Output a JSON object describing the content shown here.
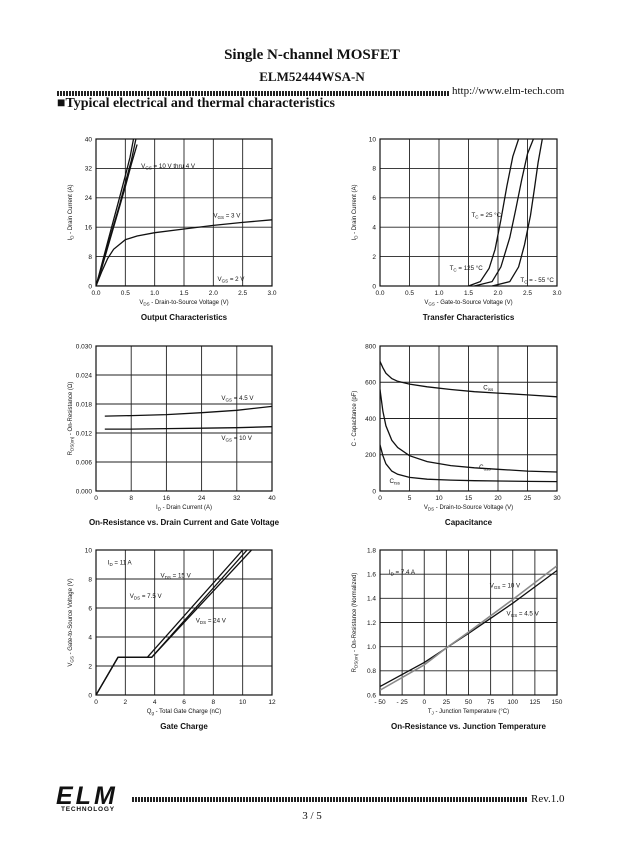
{
  "header": {
    "title": "Single N-channel MOSFET",
    "part_number": "ELM52444WSA-N",
    "url": "http://www.elm-tech.com"
  },
  "section_heading": "■Typical electrical and thermal characteristics",
  "footer": {
    "logo_text": "ELM",
    "logo_subtext": "TECHNOLOGY",
    "revision": "Rev.1.0",
    "page": "3 / 5"
  },
  "chart_data": [
    {
      "type": "line",
      "title": "Output Characteristics",
      "xlabel_parts": [
        "V",
        "DS",
        " - Drain-to-Source Voltage (V)"
      ],
      "ylabel_parts": [
        "I",
        "D",
        " - Drain Current (A)"
      ],
      "xlim": [
        0,
        3
      ],
      "ylim": [
        0,
        40
      ],
      "xticks": [
        "0.0",
        "0.5",
        "1.0",
        "1.5",
        "2.0",
        "2.5",
        "3.0"
      ],
      "yticks": [
        "0",
        "8",
        "16",
        "24",
        "32",
        "40"
      ],
      "series": [
        {
          "name": "VGS = 10 V thru 4 V",
          "x": [
            0,
            0.1,
            0.2,
            0.3,
            0.4,
            0.5,
            0.58,
            0.64
          ],
          "y": [
            0,
            6,
            12,
            18,
            24,
            30,
            35,
            40
          ]
        },
        {
          "name": "VGS = 10 V thru 4 V (2)",
          "x": [
            0,
            0.1,
            0.2,
            0.3,
            0.4,
            0.5,
            0.6,
            0.68
          ],
          "y": [
            0,
            5.5,
            11,
            16.5,
            22,
            28,
            34,
            40
          ]
        },
        {
          "name": "VGS = 10 V thru 4 V (3)",
          "x": [
            0,
            0.1,
            0.2,
            0.3,
            0.4,
            0.5,
            0.6,
            0.7
          ],
          "y": [
            0,
            5,
            10.5,
            16,
            21.5,
            27,
            33,
            38.5
          ]
        },
        {
          "name": "VGS = 3 V",
          "x": [
            0,
            0.1,
            0.2,
            0.3,
            0.5,
            0.7,
            1.0,
            1.5,
            2.0,
            2.5,
            3.0
          ],
          "y": [
            0,
            4,
            7.5,
            10,
            12.6,
            13.6,
            14.5,
            15.5,
            16.5,
            17.3,
            18
          ]
        },
        {
          "name": "VGS = 2 V",
          "x": [
            0,
            1,
            2,
            3
          ],
          "y": [
            0,
            0,
            0,
            0
          ]
        }
      ],
      "annotations": [
        {
          "parts": [
            "V",
            "GS",
            " = 10 V thru 4 V"
          ],
          "x": 0.77,
          "y": 32.1
        },
        {
          "parts": [
            "V",
            "GS",
            " = 3 V"
          ],
          "x": 2.0,
          "y": 18.7
        },
        {
          "parts": [
            "V",
            "GS",
            " = 2 V"
          ],
          "x": 2.07,
          "y": 1.3
        }
      ]
    },
    {
      "type": "line",
      "title": "Transfer Characteristics",
      "xlabel_parts": [
        "V",
        "GS",
        " - Gate-to-Source Voltage (V)"
      ],
      "ylabel_parts": [
        "I",
        "D",
        " - Drain Current (A)"
      ],
      "xlim": [
        0,
        3
      ],
      "ylim": [
        0,
        10
      ],
      "xticks": [
        "0.0",
        "0.5",
        "1.0",
        "1.5",
        "2.0",
        "2.5",
        "3.0"
      ],
      "yticks": [
        "0",
        "2",
        "4",
        "6",
        "8",
        "10"
      ],
      "series": [
        {
          "name": "TC = 125 °C",
          "x": [
            1.5,
            1.7,
            1.85,
            1.95,
            2.05,
            2.15,
            2.25,
            2.35
          ],
          "y": [
            0,
            0.3,
            1.2,
            2.5,
            4.5,
            6.8,
            8.8,
            10
          ]
        },
        {
          "name": "TC = 25 °C",
          "x": [
            1.6,
            1.9,
            2.05,
            2.2,
            2.3,
            2.4,
            2.5,
            2.6
          ],
          "y": [
            0,
            0.3,
            1.3,
            3.3,
            5.2,
            7.2,
            9.0,
            10
          ]
        },
        {
          "name": "TC = - 55 °C",
          "x": [
            1.9,
            2.2,
            2.35,
            2.45,
            2.55,
            2.62,
            2.68,
            2.75
          ],
          "y": [
            0,
            0.3,
            1.3,
            2.8,
            4.8,
            6.7,
            8.4,
            10
          ]
        }
      ],
      "annotations": [
        {
          "parts": [
            "T",
            "C",
            " = 25 °C"
          ],
          "x": 1.55,
          "y": 4.7
        },
        {
          "parts": [
            "T",
            "C",
            " = 125 °C"
          ],
          "x": 1.18,
          "y": 1.1
        },
        {
          "parts": [
            "T",
            "C",
            " = - 55 °C"
          ],
          "x": 2.38,
          "y": 0.28
        }
      ]
    },
    {
      "type": "line",
      "title": "On-Resistance vs. Drain Current and Gate Voltage",
      "xlabel_parts": [
        "I",
        "D",
        " - Drain Current (A)"
      ],
      "ylabel_parts": [
        "R",
        "DS(on)",
        " - On-Resistance (Ω)"
      ],
      "xlim": [
        0,
        40
      ],
      "ylim": [
        0,
        0.03
      ],
      "xticks": [
        "0",
        "8",
        "16",
        "24",
        "32",
        "40"
      ],
      "yticks": [
        "0.000",
        "0.006",
        "0.012",
        "0.018",
        "0.024",
        "0.030"
      ],
      "series": [
        {
          "name": "VGS = 4.5 V",
          "x": [
            2,
            8,
            16,
            24,
            32,
            40
          ],
          "y": [
            0.0155,
            0.0156,
            0.0158,
            0.0162,
            0.0167,
            0.0175
          ]
        },
        {
          "name": "VGS = 10 V",
          "x": [
            2,
            8,
            16,
            24,
            32,
            40
          ],
          "y": [
            0.0128,
            0.0128,
            0.0129,
            0.013,
            0.0131,
            0.0133
          ]
        }
      ],
      "annotations": [
        {
          "parts": [
            "V",
            "GS",
            " = 4.5 V"
          ],
          "x": 28.5,
          "y": 0.0188
        },
        {
          "parts": [
            "V",
            "GS",
            " = 10 V"
          ],
          "x": 28.5,
          "y": 0.0106
        }
      ]
    },
    {
      "type": "line",
      "title": "Capacitance",
      "xlabel_parts": [
        "V",
        "DS",
        " - Drain-to-Source Voltage (V)"
      ],
      "ylabel_parts": [
        "C - Capacitance (pF)",
        "",
        ""
      ],
      "xlim": [
        0,
        30
      ],
      "ylim": [
        0,
        800
      ],
      "xticks": [
        "0",
        "5",
        "10",
        "15",
        "20",
        "25",
        "30"
      ],
      "yticks": [
        "0",
        "200",
        "400",
        "600",
        "800"
      ],
      "series": [
        {
          "name": "Ciss",
          "x": [
            0,
            0.5,
            1,
            2,
            3,
            5,
            8,
            12,
            16,
            20,
            25,
            30
          ],
          "y": [
            715,
            680,
            650,
            620,
            605,
            590,
            575,
            560,
            548,
            540,
            530,
            520
          ]
        },
        {
          "name": "Coss",
          "x": [
            0,
            0.5,
            1,
            2,
            3,
            5,
            8,
            12,
            16,
            20,
            25,
            30
          ],
          "y": [
            560,
            440,
            360,
            280,
            240,
            195,
            162,
            140,
            128,
            120,
            110,
            105
          ]
        },
        {
          "name": "Crss",
          "x": [
            0,
            0.5,
            1,
            2,
            3,
            5,
            8,
            12,
            16,
            20,
            25,
            30
          ],
          "y": [
            255,
            195,
            150,
            110,
            92,
            75,
            65,
            60,
            57,
            55,
            53,
            52
          ]
        }
      ],
      "annotations": [
        {
          "parts": [
            "C",
            "iss",
            ""
          ],
          "x": 17.5,
          "y": 560
        },
        {
          "parts": [
            "C",
            "oss",
            ""
          ],
          "x": 16.8,
          "y": 122
        },
        {
          "parts": [
            "C",
            "rss",
            ""
          ],
          "x": 1.6,
          "y": 45
        }
      ]
    },
    {
      "type": "line",
      "title": "Gate Charge",
      "xlabel_parts": [
        "Q",
        "g",
        " - Total Gate Charge (nC)"
      ],
      "ylabel_parts": [
        "V",
        "GS",
        " - Gate-to-Source Voltage (V)"
      ],
      "xlim": [
        0,
        12
      ],
      "ylim": [
        0,
        10
      ],
      "xticks": [
        "0",
        "2",
        "4",
        "6",
        "8",
        "10",
        "12"
      ],
      "yticks": [
        "0",
        "2",
        "4",
        "6",
        "8",
        "10"
      ],
      "series": [
        {
          "name": "VDS = 7.5 V",
          "x": [
            0,
            1.5,
            3.5,
            10
          ],
          "y": [
            0,
            2.6,
            2.6,
            10
          ]
        },
        {
          "name": "VDS = 15 V",
          "x": [
            0,
            1.5,
            3.8,
            10.3
          ],
          "y": [
            0,
            2.6,
            2.6,
            10
          ]
        },
        {
          "name": "VDS = 24 V",
          "x": [
            0,
            1.5,
            3.8,
            10.6
          ],
          "y": [
            0,
            2.6,
            2.6,
            10
          ]
        }
      ],
      "annotations": [
        {
          "parts": [
            "I",
            "D",
            " = 11 A"
          ],
          "x": 0.8,
          "y": 9.0
        },
        {
          "parts": [
            "V",
            "DS",
            " = 15 V"
          ],
          "x": 4.4,
          "y": 8.1
        },
        {
          "parts": [
            "V",
            "DS",
            " = 7.5 V"
          ],
          "x": 2.3,
          "y": 6.7
        },
        {
          "parts": [
            "V",
            "DS",
            " = 24 V"
          ],
          "x": 6.8,
          "y": 5.0
        }
      ]
    },
    {
      "type": "line",
      "title": "On-Resistance vs. Junction Temperature",
      "xlabel_parts": [
        "T",
        "J",
        " - Junction Temperature (°C)"
      ],
      "ylabel_parts": [
        "R",
        "DS(on)",
        " - On-Resistance (Normalized)"
      ],
      "xlim": [
        -50,
        150
      ],
      "ylim": [
        0.6,
        1.8
      ],
      "xticks": [
        "- 50",
        "- 25",
        "0",
        "25",
        "50",
        "75",
        "100",
        "125",
        "150"
      ],
      "yticks": [
        "0.6",
        "0.8",
        "1.0",
        "1.2",
        "1.4",
        "1.6",
        "1.8"
      ],
      "series": [
        {
          "name": "VGS = 10 V",
          "x": [
            -50,
            0,
            25,
            50,
            100,
            150
          ],
          "y": [
            0.67,
            0.87,
            0.99,
            1.11,
            1.36,
            1.63
          ]
        },
        {
          "name": "VGS = 4.5 V",
          "x": [
            -50,
            0,
            25,
            50,
            100,
            150
          ],
          "y": [
            0.64,
            0.85,
            0.99,
            1.12,
            1.39,
            1.67
          ]
        }
      ],
      "annotations": [
        {
          "parts": [
            "I",
            "D",
            " = 7.4 A"
          ],
          "x": -40,
          "y": 1.6
        },
        {
          "parts": [
            "V",
            "GS",
            " = 10 V"
          ],
          "x": 74,
          "y": 1.49
        },
        {
          "parts": [
            "V",
            "GS",
            " = 4.5 V"
          ],
          "x": 93,
          "y": 1.26
        }
      ]
    }
  ]
}
